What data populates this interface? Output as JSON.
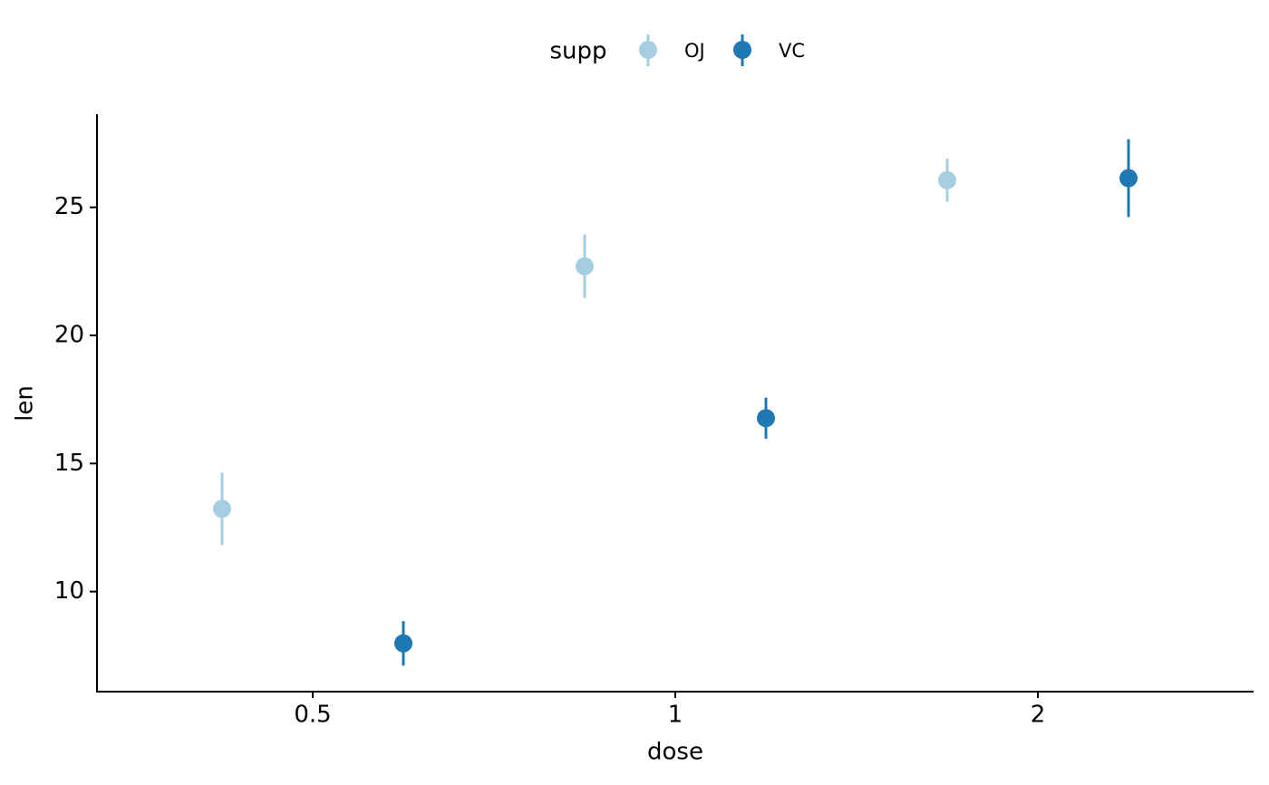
{
  "chart_data": {
    "type": "errorbar",
    "x_label": "dose",
    "y_label": "len",
    "legend_title": "supp",
    "legend_position": "top",
    "categories": [
      "0.5",
      "1",
      "2"
    ],
    "series": [
      {
        "name": "OJ",
        "color": "#a6cee3",
        "values": [
          13.23,
          22.7,
          26.06
        ],
        "errors": [
          1.41,
          1.24,
          0.84
        ]
      },
      {
        "name": "VC",
        "color": "#1f78b4",
        "values": [
          7.98,
          16.77,
          26.14
        ],
        "errors": [
          0.87,
          0.8,
          1.52
        ]
      }
    ],
    "ylim": [
      6.13,
      28.6
    ],
    "yticks": [
      10,
      15,
      20,
      25
    ],
    "grid": false
  }
}
